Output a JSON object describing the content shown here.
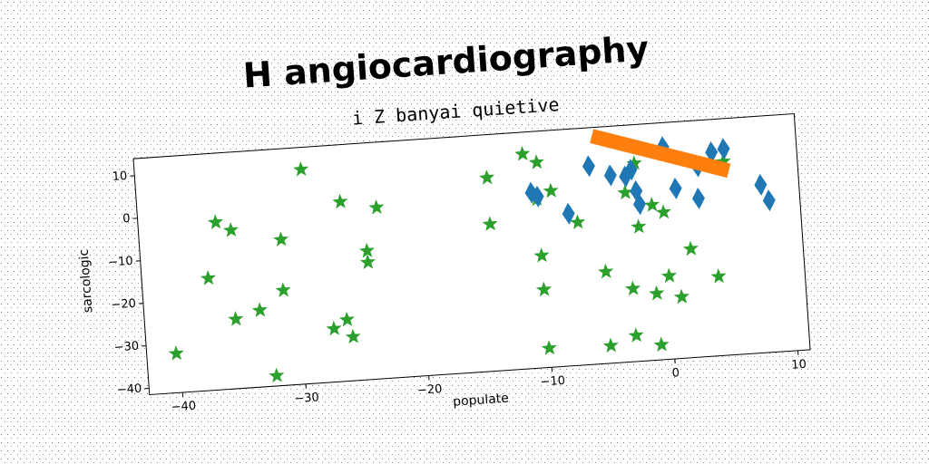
{
  "chart_data": {
    "type": "scatter",
    "title": "H angiocardiography",
    "subtitle": "i Z banyai quietive",
    "xlabel": "populate",
    "ylabel": "sarcologic",
    "xlim": [
      -42.7,
      11
    ],
    "ylim": [
      -41.5,
      14
    ],
    "xticks": [
      {
        "value": -40,
        "label": "−40"
      },
      {
        "value": -30,
        "label": "−30"
      },
      {
        "value": -20,
        "label": "−20"
      },
      {
        "value": -10,
        "label": "−10"
      },
      0,
      10
    ],
    "yticks": [
      {
        "value": -40,
        "label": "−40"
      },
      {
        "value": -30,
        "label": "−30"
      },
      {
        "value": -20,
        "label": "−20"
      },
      {
        "value": -10,
        "label": "−10"
      },
      0,
      10
    ],
    "series": [
      {
        "marker": "star",
        "color": "#2ca02c",
        "x": [
          -40.3,
          -37.3,
          -36.4,
          -35.2,
          -35.3,
          -33.3,
          -32.3,
          -31.2,
          -31.3,
          -29.2,
          -27.4,
          -26.2,
          -26.3,
          -25.9,
          -24.3,
          -24.3,
          -23.3,
          -14.2,
          -14.2,
          -11.2,
          -10.1,
          -10.3,
          -10.2,
          -10.2,
          -10.1,
          -9.1,
          -7.1,
          -5.1,
          -5.1,
          -3.1,
          -3.0,
          -2.2,
          -3.0,
          -2.2,
          -1.0,
          -1.1,
          -1.0,
          -0.1,
          0,
          0.9,
          1.9,
          4.0,
          5.0
        ],
        "y": [
          -32.3,
          -15.2,
          -2.2,
          -4.3,
          -25.2,
          -23.5,
          -39.1,
          -7.3,
          -19.2,
          8.8,
          -29,
          0.6,
          -27.1,
          -31.2,
          -11.3,
          -14,
          -1.3,
          3.9,
          -7,
          8.9,
          6.7,
          -1.9,
          -15.2,
          -23.2,
          -37,
          -0.2,
          -8,
          -20,
          -37.4,
          -1.8,
          -24.4,
          4.9,
          -35.4,
          -10,
          -5.1,
          -25.9,
          -38,
          -7,
          -22,
          -27.1,
          -16,
          -22.9,
          3.9
        ]
      },
      {
        "marker": "diamond",
        "color": "#1f77b4",
        "x": [
          -5.9,
          -10.7,
          -10.2,
          -7.8,
          -4.2,
          -3.0,
          -2.5,
          -2.2,
          -2.0,
          0.2,
          1,
          2.9,
          2.8,
          4.1,
          5.1,
          7.9,
          8.5
        ],
        "y": [
          5,
          -0.3,
          -1.3,
          -5.8,
          2.5,
          2,
          3.5,
          -1.6,
          -4.7,
          8.3,
          -1.6,
          3.2,
          -4.3,
          6.3,
          6.9,
          -2.1,
          -5.9
        ]
      },
      {
        "marker": "line",
        "color": "#ff7f0e",
        "x": [
          -5.5,
          5.4
        ],
        "y": [
          12,
          1.7
        ]
      }
    ]
  }
}
